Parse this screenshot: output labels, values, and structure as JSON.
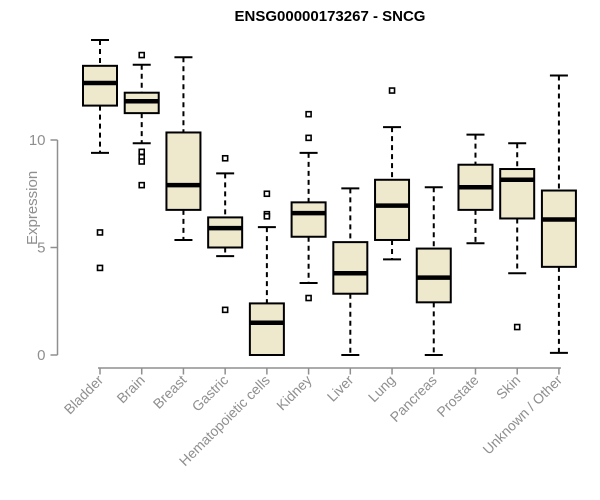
{
  "chart_data": {
    "type": "boxplot",
    "title": "ENSG00000173267 - SNCG",
    "ylabel": "Expression",
    "xlabel": "",
    "ylim": [
      0,
      14.7
    ],
    "yticks": [
      0,
      5,
      10
    ],
    "grid": false,
    "legend": "none",
    "colors": {
      "box_fill": "#EEE8CD",
      "box_stroke": "#000000",
      "median": "#000000",
      "whisker": "#000000",
      "axis": "#8f8f8f",
      "tick_label": "#8f8f8f",
      "title": "#000000",
      "outlier_fill": "#ffffff"
    },
    "categories": [
      "Bladder",
      "Brain",
      "Breast",
      "Gastric",
      "Hematopoietic cells",
      "Kidney",
      "Liver",
      "Lung",
      "Pancreas",
      "Prostate",
      "Skin",
      "Unknown / Other"
    ],
    "series": [
      {
        "category": "Bladder",
        "slug": "bladder",
        "whisker_low": 9.4,
        "q1": 11.6,
        "median": 12.65,
        "q3": 13.45,
        "whisker_high": 14.65,
        "outliers": [
          5.7,
          4.05
        ]
      },
      {
        "category": "Brain",
        "slug": "brain",
        "whisker_low": 9.85,
        "q1": 11.25,
        "median": 11.8,
        "q3": 12.2,
        "whisker_high": 13.5,
        "outliers": [
          13.95,
          9.45,
          9.2,
          9.0,
          7.9
        ]
      },
      {
        "category": "Breast",
        "slug": "breast",
        "whisker_low": 5.35,
        "q1": 6.75,
        "median": 7.9,
        "q3": 10.35,
        "whisker_high": 13.85,
        "outliers": []
      },
      {
        "category": "Gastric",
        "slug": "gastric",
        "whisker_low": 4.6,
        "q1": 5.0,
        "median": 5.9,
        "q3": 6.4,
        "whisker_high": 8.45,
        "outliers": [
          9.15,
          2.1
        ]
      },
      {
        "category": "Hematopoietic cells",
        "slug": "hematopoietic-cells",
        "whisker_low": 0.0,
        "q1": 0.0,
        "median": 1.5,
        "q3": 2.4,
        "whisker_high": 5.95,
        "outliers": [
          7.5,
          6.55,
          6.45
        ]
      },
      {
        "category": "Kidney",
        "slug": "kidney",
        "whisker_low": 3.35,
        "q1": 5.5,
        "median": 6.6,
        "q3": 7.1,
        "whisker_high": 9.4,
        "outliers": [
          11.2,
          10.1,
          2.65
        ]
      },
      {
        "category": "Liver",
        "slug": "liver",
        "whisker_low": 0.0,
        "q1": 2.85,
        "median": 3.8,
        "q3": 5.25,
        "whisker_high": 7.75,
        "outliers": []
      },
      {
        "category": "Lung",
        "slug": "lung",
        "whisker_low": 4.45,
        "q1": 5.35,
        "median": 6.95,
        "q3": 8.15,
        "whisker_high": 10.6,
        "outliers": [
          12.3
        ]
      },
      {
        "category": "Pancreas",
        "slug": "pancreas",
        "whisker_low": 0.0,
        "q1": 2.45,
        "median": 3.6,
        "q3": 4.95,
        "whisker_high": 7.8,
        "outliers": []
      },
      {
        "category": "Prostate",
        "slug": "prostate",
        "whisker_low": 5.2,
        "q1": 6.75,
        "median": 7.8,
        "q3": 8.85,
        "whisker_high": 10.25,
        "outliers": []
      },
      {
        "category": "Skin",
        "slug": "skin",
        "whisker_low": 3.8,
        "q1": 6.35,
        "median": 8.15,
        "q3": 8.65,
        "whisker_high": 9.85,
        "outliers": [
          1.3
        ]
      },
      {
        "category": "Unknown / Other",
        "slug": "unknown-other",
        "whisker_low": 0.1,
        "q1": 4.1,
        "median": 6.3,
        "q3": 7.65,
        "whisker_high": 13.0,
        "outliers": []
      }
    ]
  }
}
